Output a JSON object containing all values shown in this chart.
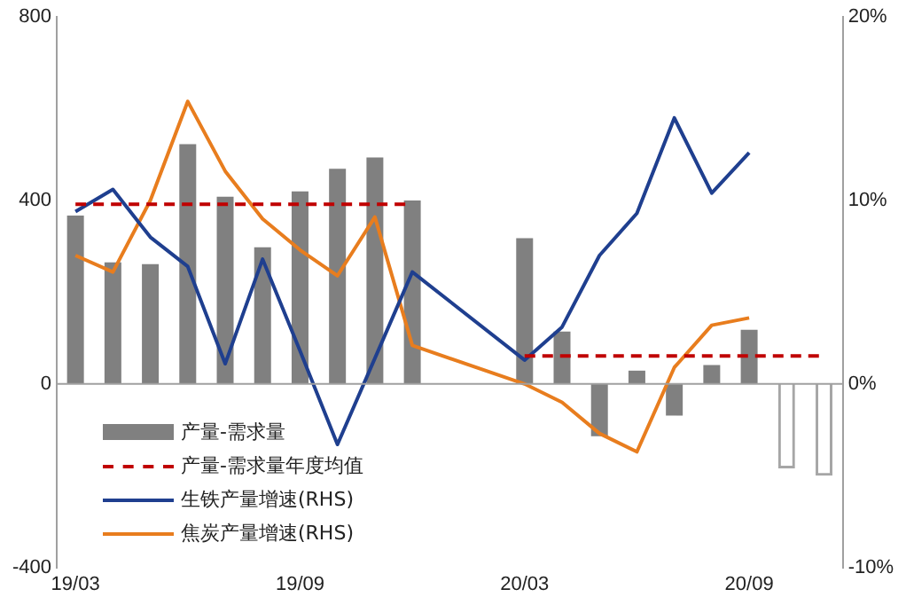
{
  "chart_data": {
    "type": "bar",
    "categories": [
      "19/03",
      null,
      null,
      null,
      null,
      null,
      "19/09",
      null,
      null,
      null,
      null,
      null,
      "20/03",
      null,
      null,
      null,
      null,
      null,
      "20/09",
      null,
      null
    ],
    "series": [
      {
        "name": "产量-需求量",
        "color": "#808080",
        "values": [
          367,
          265,
          261,
          523,
          408,
          298,
          420,
          469,
          494,
          400,
          null,
          null,
          318,
          114,
          -114,
          29,
          -69,
          41,
          118,
          null,
          null
        ]
      },
      {
        "color": "#a6a6a6",
        "line_style": "dashed",
        "values": [
          null,
          null,
          null,
          null,
          null,
          null,
          null,
          null,
          null,
          null,
          null,
          null,
          null,
          null,
          null,
          null,
          null,
          null,
          null,
          -184,
          -200
        ]
      },
      {
        "type": "line",
        "name": "产量-需求量年度均值",
        "color": "#c00000",
        "line_style": "dashed",
        "values": [
          392,
          392,
          392,
          392,
          392,
          392,
          392,
          392,
          392,
          392,
          null,
          null,
          61,
          61,
          61,
          61,
          61,
          61,
          61,
          61,
          61
        ]
      },
      {
        "type": "line",
        "name": "生铁产量增速(RHS)",
        "color": "#1f3f8f",
        "axis": "y2",
        "values": [
          9.4,
          10.6,
          8.0,
          6.4,
          1.1,
          6.8,
          1.8,
          -3.3,
          1.4,
          6.1,
          null,
          null,
          1.3,
          3.1,
          7.0,
          9.3,
          14.5,
          10.4,
          12.6,
          null,
          null
        ]
      },
      {
        "type": "line",
        "name": "焦炭产量增速(RHS)",
        "color": "#e87d1e",
        "axis": "y2",
        "values": [
          7.0,
          6.1,
          10.0,
          15.4,
          11.6,
          9.0,
          7.3,
          5.9,
          9.1,
          2.1,
          null,
          null,
          0.0,
          -1.0,
          -2.7,
          -3.7,
          0.9,
          3.2,
          3.6,
          null,
          null
        ]
      }
    ],
    "ylim": [
      -400,
      800
    ],
    "yticks": [
      -400,
      0,
      400,
      800
    ],
    "y2lim": [
      -10,
      20
    ],
    "y2ticks": [
      {
        "value": -10,
        "label": "-10%"
      },
      {
        "value": 0,
        "label": "0%"
      },
      {
        "value": 10,
        "label": "10%"
      },
      {
        "value": 20,
        "label": "20%"
      }
    ],
    "ref_lines": [
      {
        "axis": "y",
        "value": 0,
        "color": "#a0a0a0"
      }
    ],
    "grid": false,
    "legend": "bottom left",
    "marker": "none"
  }
}
